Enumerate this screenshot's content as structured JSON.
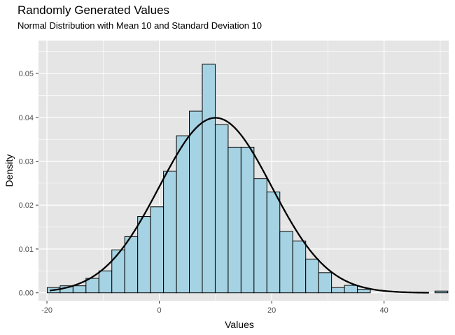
{
  "chart_data": {
    "type": "bar",
    "subtype": "histogram-with-density-curve",
    "title": "Randomly Generated Values",
    "subtitle": "Normal Distribution with Mean 10 and Standard Deviation 10",
    "xlabel": "Values",
    "ylabel": "Density",
    "xlim": [
      -21.5,
      51.5
    ],
    "ylim": [
      -0.0018,
      0.0575
    ],
    "x_ticks": [
      -20,
      0,
      20,
      40
    ],
    "x_tick_labels": [
      "-20",
      "0",
      "20",
      "40"
    ],
    "y_ticks": [
      0.0,
      0.01,
      0.02,
      0.03,
      0.04,
      0.05
    ],
    "y_tick_labels": [
      "0.00",
      "0.01",
      "0.02",
      "0.03",
      "0.04",
      "0.05"
    ],
    "bin_width": 2.3,
    "bins": [
      {
        "x": -18.8,
        "density": 0.0012
      },
      {
        "x": -16.5,
        "density": 0.0016
      },
      {
        "x": -14.2,
        "density": 0.0016
      },
      {
        "x": -11.9,
        "density": 0.0033
      },
      {
        "x": -9.6,
        "density": 0.005
      },
      {
        "x": -7.3,
        "density": 0.0098
      },
      {
        "x": -5.0,
        "density": 0.0128
      },
      {
        "x": -2.7,
        "density": 0.0174
      },
      {
        "x": -0.4,
        "density": 0.0196
      },
      {
        "x": 1.9,
        "density": 0.0277
      },
      {
        "x": 4.2,
        "density": 0.0358
      },
      {
        "x": 6.5,
        "density": 0.0414
      },
      {
        "x": 8.8,
        "density": 0.0521
      },
      {
        "x": 11.1,
        "density": 0.0383
      },
      {
        "x": 13.4,
        "density": 0.0332
      },
      {
        "x": 15.7,
        "density": 0.0332
      },
      {
        "x": 18.0,
        "density": 0.026
      },
      {
        "x": 20.3,
        "density": 0.023
      },
      {
        "x": 22.6,
        "density": 0.014
      },
      {
        "x": 24.9,
        "density": 0.0118
      },
      {
        "x": 27.2,
        "density": 0.0077
      },
      {
        "x": 29.5,
        "density": 0.0046
      },
      {
        "x": 31.8,
        "density": 0.0012
      },
      {
        "x": 34.1,
        "density": 0.0017
      },
      {
        "x": 36.4,
        "density": 0.0008
      },
      {
        "x": 38.7,
        "density": 0.0
      },
      {
        "x": 41.0,
        "density": 0.0
      },
      {
        "x": 43.3,
        "density": 0.0
      },
      {
        "x": 45.6,
        "density": 0.0
      },
      {
        "x": 47.9,
        "density": 0.0
      },
      {
        "x": 50.2,
        "density": 0.0004
      }
    ],
    "density_curve": {
      "distribution": "normal",
      "mean": 10,
      "sd": 10,
      "x_range": [
        -19.5,
        48
      ]
    },
    "colors": {
      "panel_background": "#e5e5e5",
      "grid": "#ffffff",
      "bar_fill": "#a6d3e3",
      "bar_outline": "#000000",
      "curve": "#000000"
    },
    "grid": true,
    "legend": "none"
  }
}
